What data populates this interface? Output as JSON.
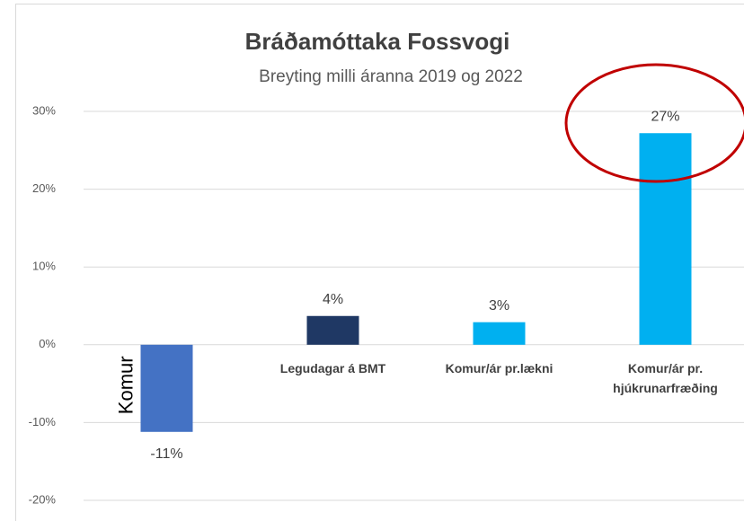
{
  "chart_data": {
    "type": "bar",
    "title": "Bráðamóttaka Fossvogi",
    "subtitle": "Breyting milli áranna 2019 og 2022",
    "categories": [
      "Komur",
      "Legudagar á BMT",
      "Komur/ár pr.lækni",
      "Komur/ár pr. hjúkrunarfræðing"
    ],
    "values": [
      -11.2,
      3.7,
      2.9,
      27.2
    ],
    "value_labels": [
      "-11%",
      "4%",
      "3%",
      "27%"
    ],
    "colors": [
      "#4472c4",
      "#1f3864",
      "#00b0f0",
      "#00b0f0"
    ],
    "ylim": [
      -20,
      30
    ],
    "yticks": [
      {
        "value": -20,
        "label": "-20%"
      },
      {
        "value": -10,
        "label": "-10%"
      },
      {
        "value": 0,
        "label": "0%"
      },
      {
        "value": 10,
        "label": "10%"
      },
      {
        "value": 20,
        "label": "20%"
      },
      {
        "value": 30,
        "label": "30%"
      }
    ],
    "grid": true
  }
}
